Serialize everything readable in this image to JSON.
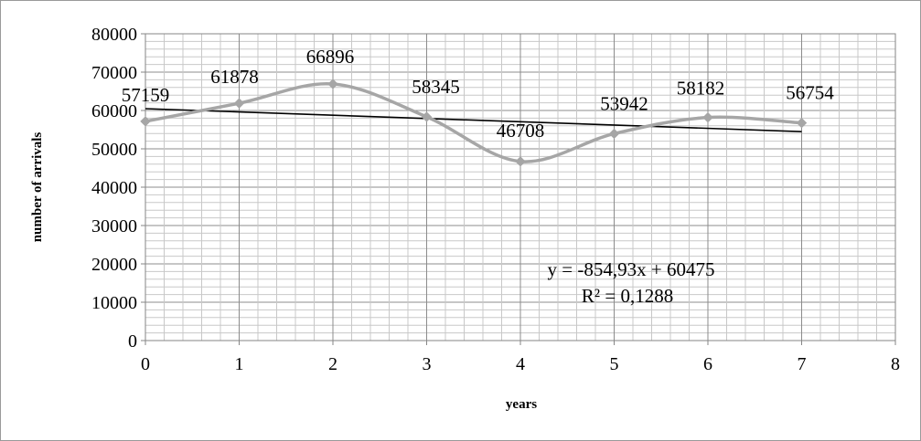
{
  "chart_data": {
    "type": "line",
    "title": "",
    "xlabel": "years",
    "ylabel": "number of arrivals",
    "xlim": [
      0,
      8
    ],
    "ylim": [
      0,
      80000
    ],
    "x_ticks": [
      "0",
      "1",
      "2",
      "3",
      "4",
      "5",
      "6",
      "7",
      "8"
    ],
    "y_ticks": [
      "0",
      "10000",
      "20000",
      "30000",
      "40000",
      "50000",
      "60000",
      "70000",
      "80000"
    ],
    "grid": true,
    "series": [
      {
        "x": [
          0,
          1,
          2,
          3,
          4,
          5,
          6,
          7
        ],
        "values": [
          57159,
          61878,
          66896,
          58345,
          46708,
          53942,
          58182,
          56754
        ],
        "labels": [
          "57159",
          "61878",
          "66896",
          "58345",
          "46708",
          "53942",
          "58182",
          "56754"
        ],
        "color": "#a6a6a6",
        "marker": "diamond",
        "smooth": true
      }
    ],
    "trendline": {
      "type": "linear",
      "slope": -854.93,
      "intercept": 60475,
      "x_range": [
        0,
        7
      ],
      "color": "#000000",
      "equation": "y = -854,93x + 60475",
      "r_squared": "R² = 0,1288"
    }
  }
}
